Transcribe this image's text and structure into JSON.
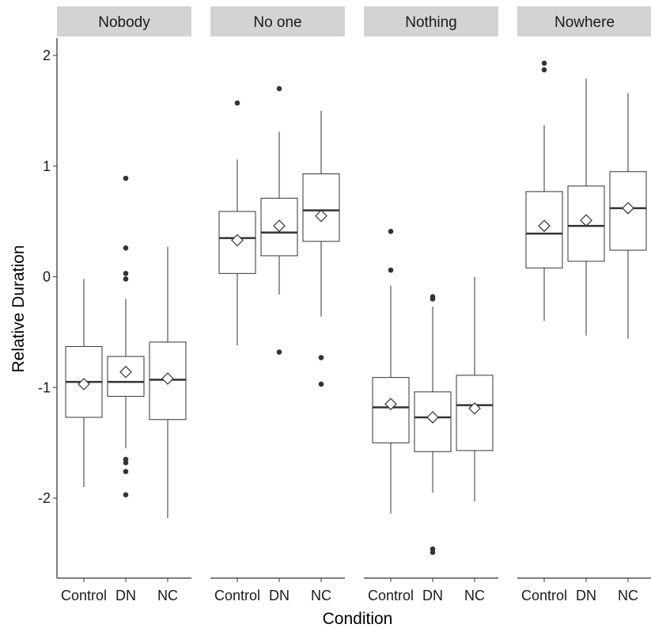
{
  "chart_data": {
    "type": "boxplot",
    "xlabel": "Condition",
    "ylabel": "Relative Duration",
    "ylim": [
      -2.7,
      2.2
    ],
    "yticks": [
      "-2",
      "-1",
      "0",
      "1",
      "2"
    ],
    "categories": [
      "Control",
      "DN",
      "NC"
    ],
    "facets": [
      {
        "label": "Nobody",
        "groups": [
          {
            "category": "Control",
            "q1": -1.27,
            "median": -0.95,
            "q3": -0.63,
            "whisker_low": -1.9,
            "whisker_high": -0.02,
            "mean": -0.97,
            "outliers": []
          },
          {
            "category": "DN",
            "q1": -1.08,
            "median": -0.95,
            "q3": -0.72,
            "whisker_low": -1.55,
            "whisker_high": -0.2,
            "mean": -0.86,
            "outliers": [
              0.89,
              0.26,
              0.03,
              -0.02,
              -1.65,
              -1.68,
              -1.76,
              -1.97
            ]
          },
          {
            "category": "NC",
            "q1": -1.29,
            "median": -0.93,
            "q3": -0.59,
            "whisker_low": -2.18,
            "whisker_high": 0.27,
            "mean": -0.92,
            "outliers": []
          }
        ]
      },
      {
        "label": "No one",
        "groups": [
          {
            "category": "Control",
            "q1": 0.03,
            "median": 0.35,
            "q3": 0.59,
            "whisker_low": -0.62,
            "whisker_high": 1.06,
            "mean": 0.33,
            "outliers": [
              1.57
            ]
          },
          {
            "category": "DN",
            "q1": 0.19,
            "median": 0.4,
            "q3": 0.71,
            "whisker_low": -0.16,
            "whisker_high": 1.31,
            "mean": 0.46,
            "outliers": [
              1.7,
              -0.68
            ]
          },
          {
            "category": "NC",
            "q1": 0.32,
            "median": 0.6,
            "q3": 0.93,
            "whisker_low": -0.36,
            "whisker_high": 1.5,
            "mean": 0.55,
            "outliers": [
              -0.73,
              -0.97
            ]
          }
        ]
      },
      {
        "label": "Nothing",
        "groups": [
          {
            "category": "Control",
            "q1": -1.5,
            "median": -1.18,
            "q3": -0.91,
            "whisker_low": -2.14,
            "whisker_high": -0.08,
            "mean": -1.15,
            "outliers": [
              0.41,
              0.06
            ]
          },
          {
            "category": "DN",
            "q1": -1.58,
            "median": -1.27,
            "q3": -1.04,
            "whisker_low": -1.95,
            "whisker_high": -0.27,
            "mean": -1.27,
            "outliers": [
              -0.18,
              -0.2,
              -2.46,
              -2.49
            ]
          },
          {
            "category": "NC",
            "q1": -1.57,
            "median": -1.16,
            "q3": -0.89,
            "whisker_low": -2.03,
            "whisker_high": 0.0,
            "mean": -1.19,
            "outliers": []
          }
        ]
      },
      {
        "label": "Nowhere",
        "groups": [
          {
            "category": "Control",
            "q1": 0.08,
            "median": 0.39,
            "q3": 0.77,
            "whisker_low": -0.4,
            "whisker_high": 1.37,
            "mean": 0.46,
            "outliers": [
              1.93,
              1.87
            ]
          },
          {
            "category": "DN",
            "q1": 0.14,
            "median": 0.46,
            "q3": 0.82,
            "whisker_low": -0.53,
            "whisker_high": 1.79,
            "mean": 0.51,
            "outliers": []
          },
          {
            "category": "NC",
            "q1": 0.24,
            "median": 0.62,
            "q3": 0.95,
            "whisker_low": -0.56,
            "whisker_high": 1.66,
            "mean": 0.62,
            "outliers": []
          }
        ]
      }
    ]
  }
}
